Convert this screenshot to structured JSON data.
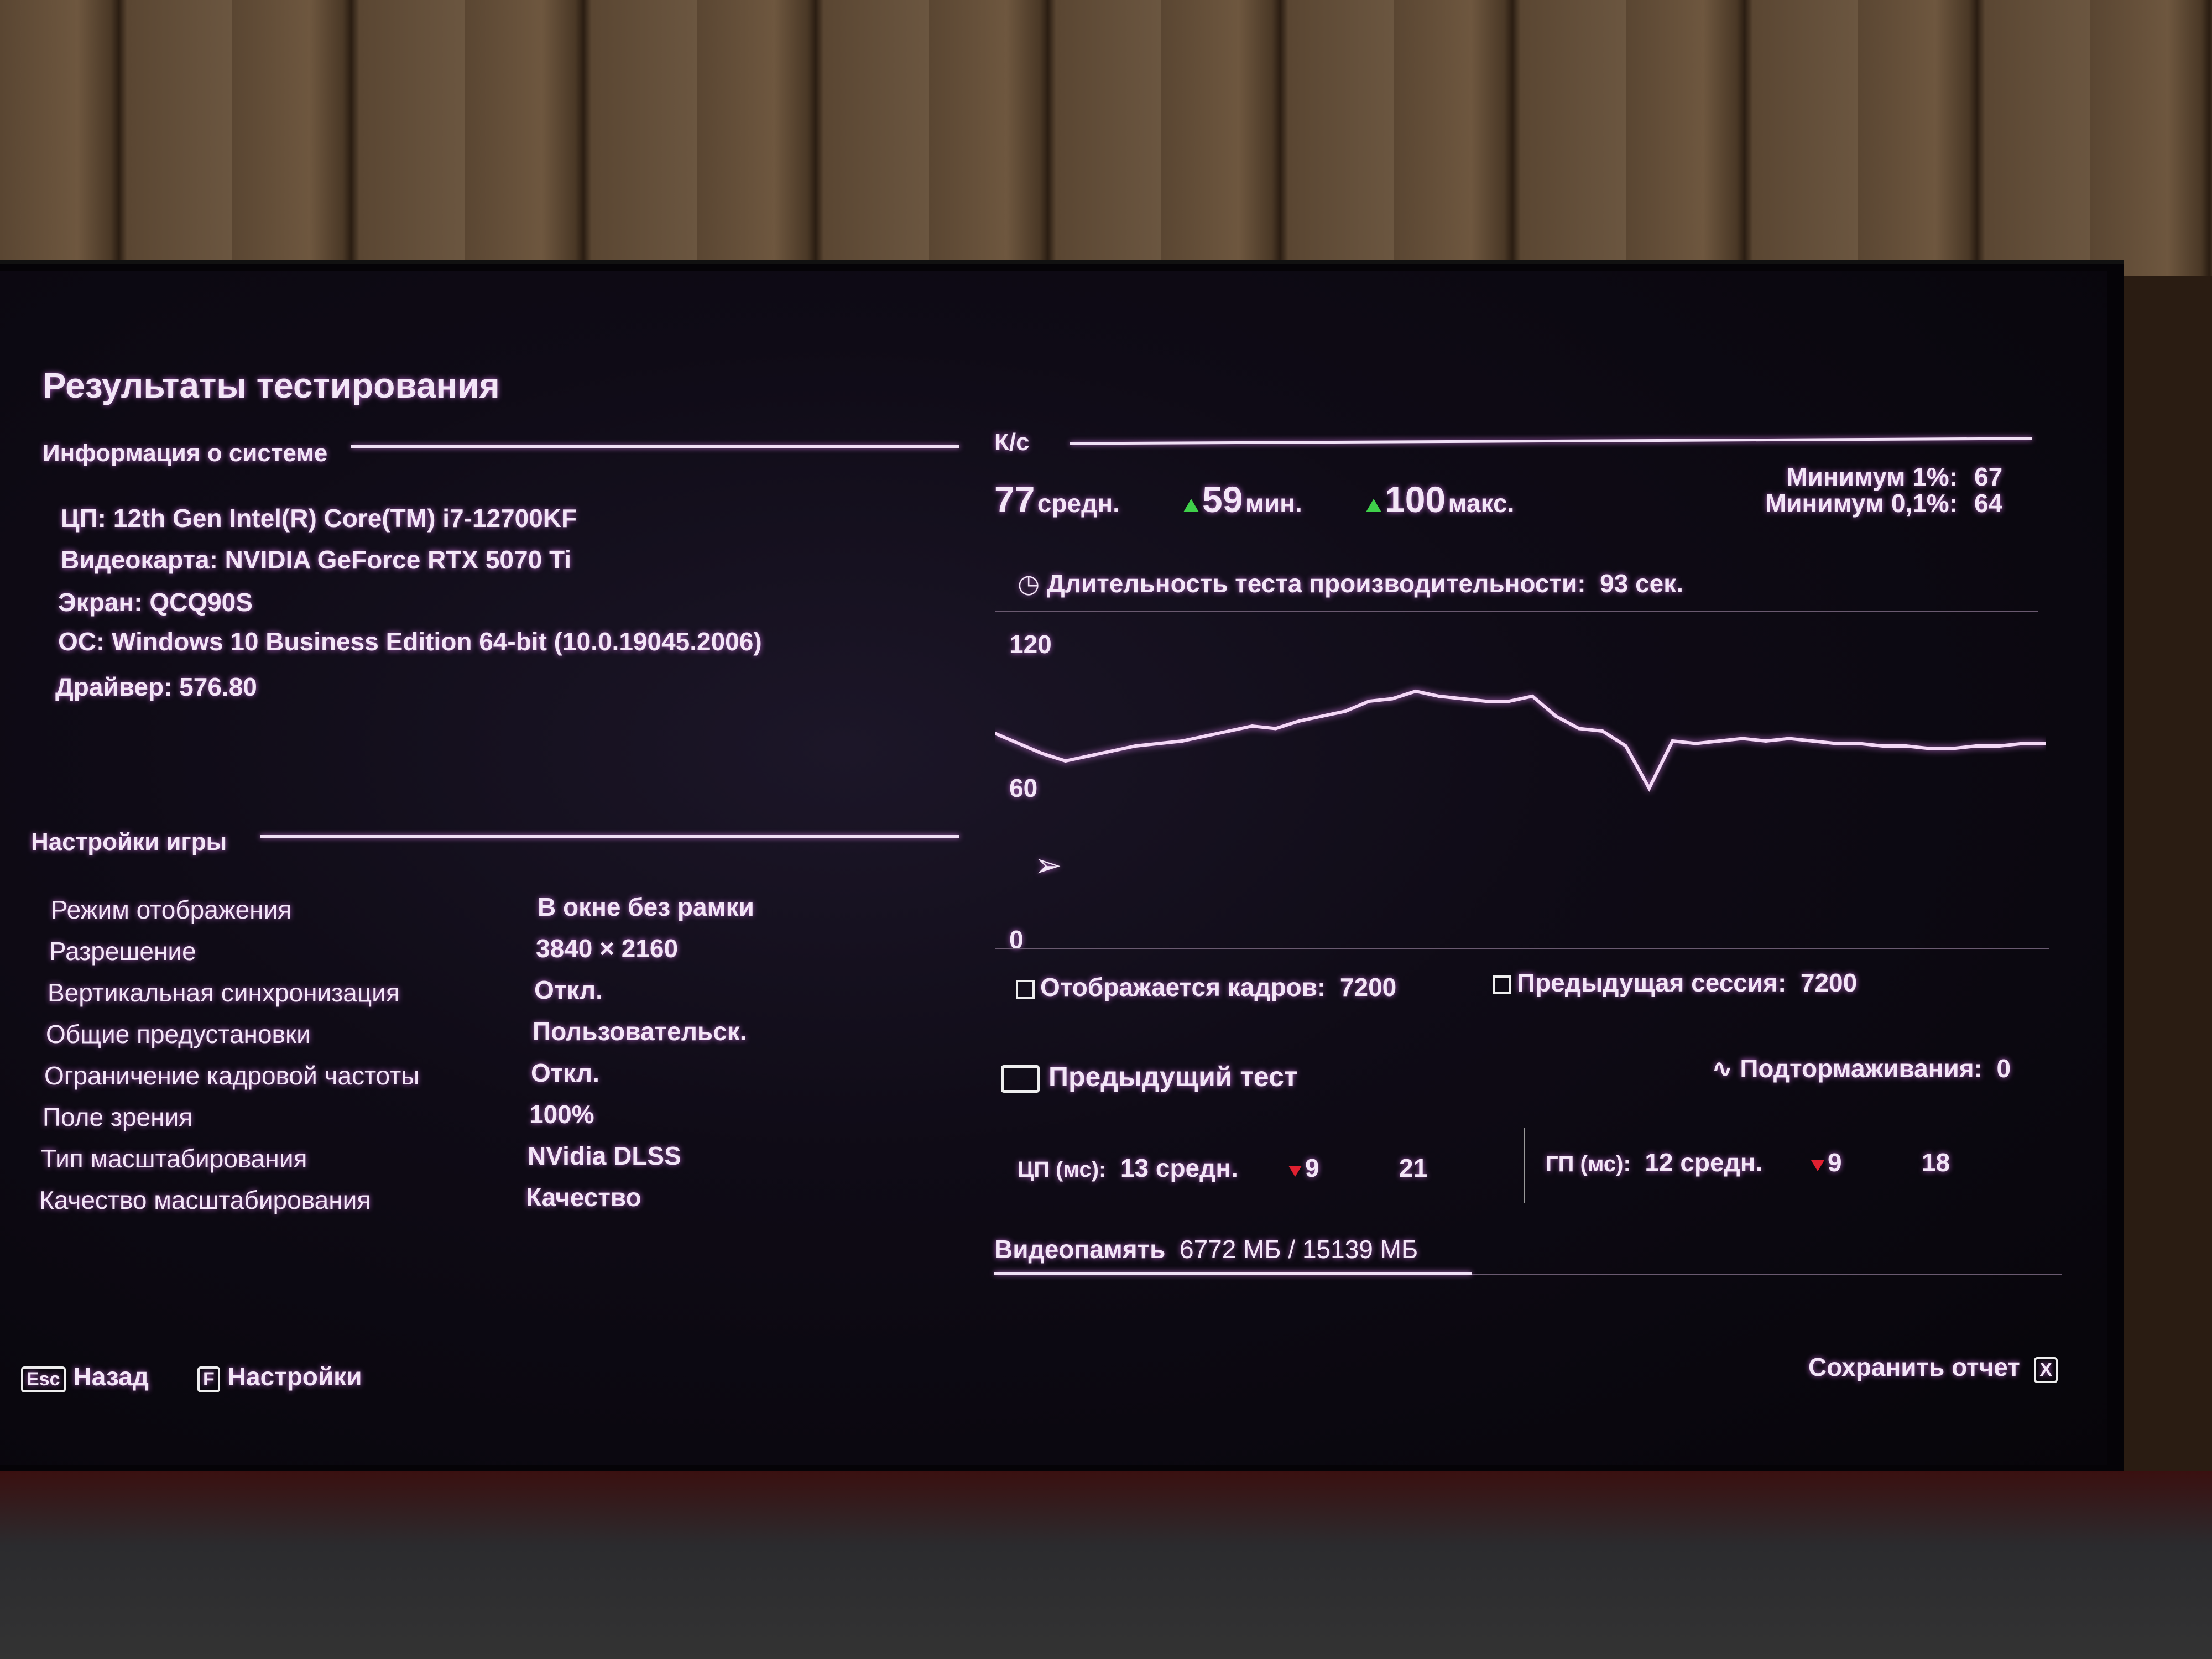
{
  "page": {
    "title": "Результаты тестирования"
  },
  "system": {
    "heading": "Информация о системе",
    "lines": [
      "ЦП: 12th Gen Intel(R) Core(TM) i7-12700KF",
      "Видеокарта: NVIDIA GeForce RTX 5070 Ti",
      "Экран: QCQ90S",
      "ОС: Windows 10 Business Edition 64-bit (10.0.19045.2006)",
      "Драйвер: 576.80"
    ]
  },
  "settings": {
    "heading": "Настройки игры",
    "rows": [
      {
        "label": "Режим отображения",
        "value": "В окне без рамки"
      },
      {
        "label": "Разрешение",
        "value": "3840 × 2160"
      },
      {
        "label": "Вертикальная синхронизация",
        "value": "Откл."
      },
      {
        "label": "Общие предустановки",
        "value": "Пользовательск."
      },
      {
        "label": "Ограничение кадровой частоты",
        "value": "Откл."
      },
      {
        "label": "Поле зрения",
        "value": "100%"
      },
      {
        "label": "Тип масштабирования",
        "value": "NVidia DLSS"
      },
      {
        "label": "Качество масштабирования",
        "value": "Качество"
      }
    ]
  },
  "fps": {
    "heading": "К/с",
    "avg": "77",
    "avg_label": "средн.",
    "min": "59",
    "min_label": "мин.",
    "max": "100",
    "max_label": "макс.",
    "low1_label": "Минимум 1%:",
    "low1": "67",
    "low01_label": "Минимум 0,1%:",
    "low01": "64",
    "duration_label": "Длительность теста производительности:",
    "duration": "93 сек.",
    "frames_label": "Отображается кадров:",
    "frames": "7200",
    "prev_session_label": "Предыдущая сессия:",
    "prev_session": "7200"
  },
  "chart_data": {
    "type": "line",
    "ylim": [
      0,
      120
    ],
    "yticks": [
      "120",
      "60",
      "0"
    ],
    "values": [
      83,
      79,
      75,
      72,
      74,
      76,
      78,
      79,
      80,
      82,
      84,
      86,
      85,
      88,
      90,
      92,
      96,
      97,
      100,
      98,
      97,
      96,
      96,
      98,
      90,
      85,
      84,
      78,
      61,
      80,
      79,
      80,
      81,
      80,
      81,
      80,
      79,
      79,
      78,
      78,
      77,
      77,
      78,
      78,
      79,
      79
    ],
    "line_color": "#f4d8f6"
  },
  "prev_test": {
    "label": "Предыдущий тест",
    "stutter_label": "Подтормаживания:",
    "stutter": "0",
    "cpu_label": "ЦП (мс):",
    "cpu_avg": "13",
    "cpu_avg_label": "средн.",
    "cpu_min": "9",
    "cpu_max": "21",
    "gpu_label": "ГП (мс):",
    "gpu_avg": "12",
    "gpu_avg_label": "средн.",
    "gpu_min": "9",
    "gpu_max": "18"
  },
  "vram": {
    "label": "Видеопамять",
    "value": "6772 МБ / 15139 МБ",
    "fraction": 0.447
  },
  "footer": {
    "back_key": "Esc",
    "back_label": "Назад",
    "settings_key": "F",
    "settings_label": "Настройки",
    "save_label": "Сохранить отчет",
    "save_key": "X"
  },
  "colors": {
    "accent": "#f0e0f5",
    "up": "#3fd04a",
    "down": "#e02030"
  }
}
